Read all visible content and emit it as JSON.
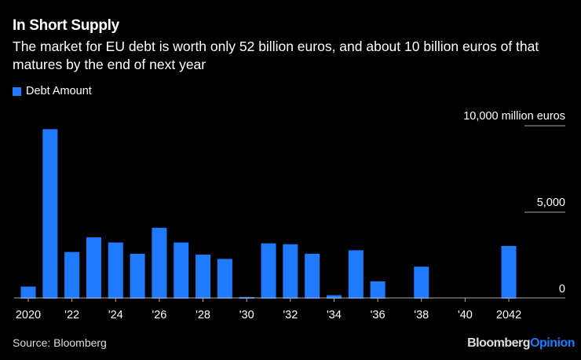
{
  "chart_data": {
    "type": "bar",
    "title": "In Short Supply",
    "subtitle": "The market for EU debt is worth only 52 billion euros, and about 10 billion euros of that matures by the end of next year",
    "series": [
      {
        "name": "Debt Amount",
        "color": "#1e7bff",
        "x": [
          2020,
          2021,
          2022,
          2023,
          2024,
          2025,
          2026,
          2027,
          2028,
          2029,
          2030,
          2031,
          2032,
          2033,
          2034,
          2035,
          2036,
          2037,
          2038,
          2039,
          2040,
          2041,
          2042
        ],
        "values": [
          700,
          9800,
          2700,
          3550,
          3250,
          2600,
          4100,
          3250,
          2550,
          2300,
          100,
          3200,
          3150,
          2600,
          200,
          2800,
          1000,
          0,
          1850,
          0,
          0,
          0,
          3050
        ]
      }
    ],
    "x_tick_labels": [
      "2020",
      "'22",
      "'24",
      "'26",
      "'28",
      "'30",
      "'32",
      "'34",
      "'36",
      "'38",
      "'40",
      "2042"
    ],
    "x_ticks": [
      2020,
      2022,
      2024,
      2026,
      2028,
      2030,
      2032,
      2034,
      2036,
      2038,
      2040,
      2042
    ],
    "y_ticks": [
      0,
      5000,
      10000
    ],
    "y_tick_labels": [
      "0",
      "5,000",
      "10,000 million euros"
    ],
    "ylim": [
      0,
      10000
    ],
    "grid": false,
    "legend": "top-left",
    "xlabel": "",
    "ylabel": ""
  },
  "source": "Source: Bloomberg",
  "logo": {
    "part1": "Bloomberg",
    "part2": "Opinion"
  }
}
